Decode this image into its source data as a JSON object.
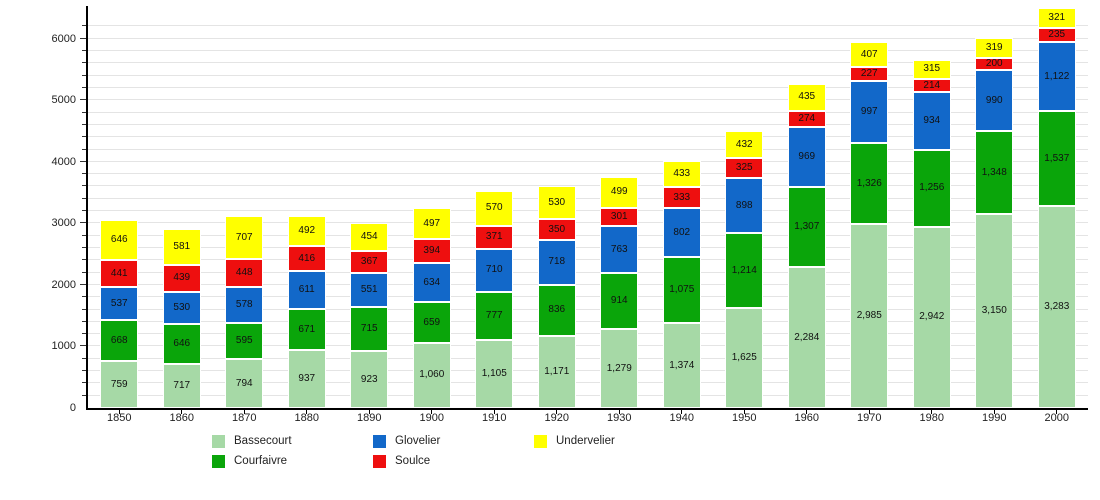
{
  "chart_data": {
    "type": "bar",
    "stacked": true,
    "title": "",
    "xlabel": "",
    "ylabel": "",
    "categories": [
      "1850",
      "1860",
      "1870",
      "1880",
      "1890",
      "1900",
      "1910",
      "1920",
      "1930",
      "1940",
      "1950",
      "1960",
      "1970",
      "1980",
      "1990",
      "2000"
    ],
    "series": [
      {
        "name": "Bassecourt",
        "color": "#a6d9a6",
        "values": [
          759,
          717,
          794,
          937,
          923,
          1060,
          1105,
          1171,
          1279,
          1374,
          1625,
          2284,
          2985,
          2942,
          3150,
          3283
        ]
      },
      {
        "name": "Courfaivre",
        "color": "#0aa50a",
        "values": [
          668,
          646,
          595,
          671,
          715,
          659,
          777,
          836,
          914,
          1075,
          1214,
          1307,
          1326,
          1256,
          1348,
          1537
        ]
      },
      {
        "name": "Glovelier",
        "color": "#1268c9",
        "values": [
          537,
          530,
          578,
          611,
          551,
          634,
          710,
          718,
          763,
          802,
          898,
          969,
          997,
          934,
          990,
          1122
        ]
      },
      {
        "name": "Soulce",
        "color": "#ee0f0f",
        "values": [
          441,
          439,
          448,
          416,
          367,
          394,
          371,
          350,
          301,
          333,
          325,
          274,
          227,
          214,
          200,
          235
        ]
      },
      {
        "name": "Undervelier",
        "color": "#ffff00",
        "values": [
          646,
          581,
          707,
          492,
          454,
          497,
          570,
          530,
          499,
          433,
          432,
          435,
          407,
          315,
          319,
          321
        ]
      }
    ],
    "ylim": [
      0,
      6500
    ],
    "yticks_major": [
      0,
      1000,
      2000,
      3000,
      4000,
      5000,
      6000
    ],
    "ytick_minor_step": 200,
    "grid": true,
    "value_labels": true,
    "legend_position": "bottom",
    "legend_columns": 3,
    "legend_rows": 2
  },
  "colors": {
    "background": "#ffffff",
    "gridline": "#e4e4e4",
    "axis": "#000000",
    "label_text": "#111111"
  }
}
